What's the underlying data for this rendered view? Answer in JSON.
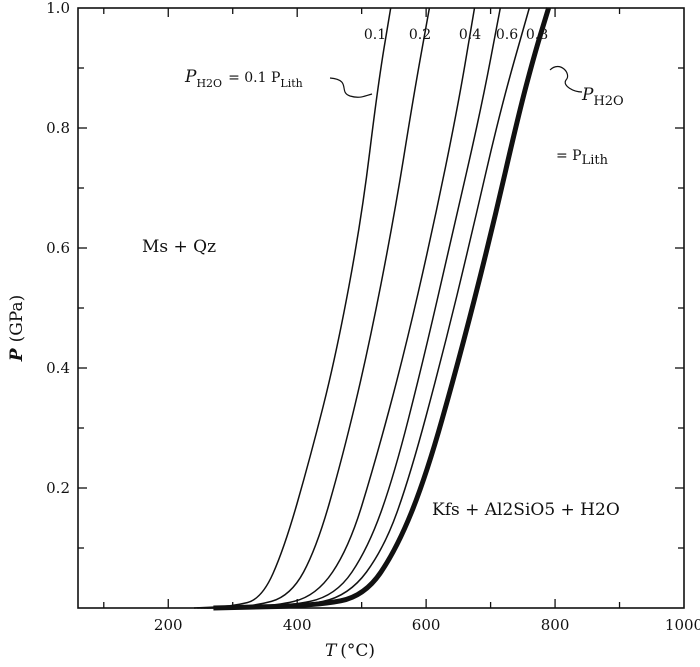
{
  "chart_data": {
    "type": "line",
    "xlabel_symbol": "T",
    "xlabel_unit": "(°C)",
    "ylabel_symbol": "P",
    "ylabel_unit": "(GPa)",
    "xlim": [
      60,
      1000
    ],
    "ylim": [
      0,
      1.0
    ],
    "x_ticks": [
      200,
      400,
      600,
      800,
      1000
    ],
    "x_tick_labels": [
      "200",
      "400",
      "600",
      "800",
      "1000"
    ],
    "y_ticks": [
      0.2,
      0.4,
      0.6,
      0.8,
      1.0
    ],
    "y_tick_labels": [
      "0.2",
      "0.4",
      "0.6",
      "0.8",
      "1.0"
    ],
    "grid": false,
    "series": [
      {
        "name": "0.1",
        "bold": false,
        "points": [
          [
            240,
            0
          ],
          [
            300,
            0.003
          ],
          [
            345,
            0.015
          ],
          [
            380,
            0.1
          ],
          [
            420,
            0.25
          ],
          [
            460,
            0.42
          ],
          [
            500,
            0.65
          ],
          [
            525,
            0.87
          ],
          [
            545,
            1.0
          ]
        ]
      },
      {
        "name": "0.2",
        "bold": false,
        "points": [
          [
            245,
            0
          ],
          [
            330,
            0.002
          ],
          [
            390,
            0.02
          ],
          [
            430,
            0.1
          ],
          [
            470,
            0.25
          ],
          [
            510,
            0.43
          ],
          [
            550,
            0.65
          ],
          [
            580,
            0.85
          ],
          [
            605,
            1.0
          ]
        ]
      },
      {
        "name": "0.4",
        "bold": false,
        "points": [
          [
            250,
            0
          ],
          [
            360,
            0.002
          ],
          [
            430,
            0.02
          ],
          [
            480,
            0.1
          ],
          [
            520,
            0.24
          ],
          [
            565,
            0.42
          ],
          [
            610,
            0.63
          ],
          [
            650,
            0.84
          ],
          [
            675,
            1.0
          ]
        ]
      },
      {
        "name": "0.6",
        "bold": false,
        "points": [
          [
            255,
            0
          ],
          [
            380,
            0.002
          ],
          [
            460,
            0.02
          ],
          [
            510,
            0.1
          ],
          [
            550,
            0.22
          ],
          [
            595,
            0.41
          ],
          [
            640,
            0.62
          ],
          [
            685,
            0.83
          ],
          [
            715,
            1.0
          ]
        ]
      },
      {
        "name": "0.8",
        "bold": false,
        "points": [
          [
            260,
            0
          ],
          [
            400,
            0.002
          ],
          [
            480,
            0.02
          ],
          [
            535,
            0.1
          ],
          [
            575,
            0.22
          ],
          [
            625,
            0.42
          ],
          [
            670,
            0.62
          ],
          [
            715,
            0.83
          ],
          [
            760,
            1.0
          ]
        ]
      },
      {
        "name": "PH2O = PLith",
        "bold": true,
        "points": [
          [
            270,
            0
          ],
          [
            430,
            0.004
          ],
          [
            505,
            0.02
          ],
          [
            555,
            0.1
          ],
          [
            600,
            0.22
          ],
          [
            650,
            0.41
          ],
          [
            700,
            0.62
          ],
          [
            745,
            0.83
          ],
          [
            770,
            0.93
          ],
          [
            790,
            1.0
          ]
        ]
      }
    ],
    "curve_tags": [
      "0.1",
      "0.2",
      "0.4",
      "0.6",
      "0.8"
    ],
    "annotations": {
      "region_low": "Ms + Qz",
      "region_high": "Kfs + Al2SiO5 + H2O",
      "p_h2o_a": "P",
      "p_h2o_b": "H2O",
      "p_h2o_c": "= 0.1 P",
      "p_h2o_d": "Lith",
      "p_lith_a": "P",
      "p_lith_b": "H2O",
      "p_lith_c": "= P",
      "p_lith_d": "Lith"
    }
  }
}
